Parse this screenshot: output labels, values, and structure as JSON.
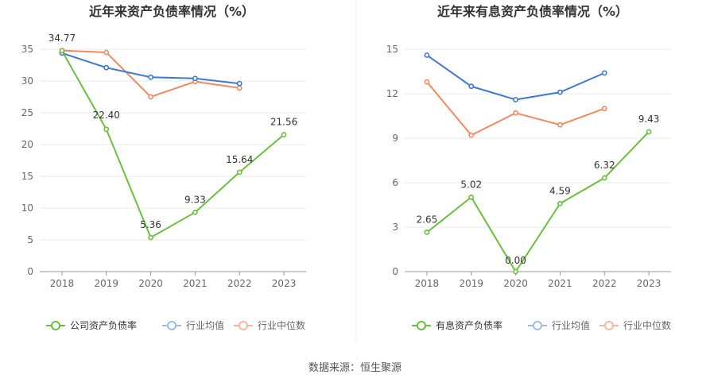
{
  "source": "数据来源：恒生聚源",
  "chart_data": [
    {
      "type": "line",
      "title": "近年来资产负债率情况（%）",
      "categories": [
        "2018",
        "2019",
        "2020",
        "2021",
        "2022",
        "2023"
      ],
      "ylim": [
        0,
        35
      ],
      "yticks": [
        0,
        5,
        10,
        15,
        20,
        25,
        30,
        35
      ],
      "grid": true,
      "legend": "bottom",
      "series": [
        {
          "name": "公司资产负债率",
          "color": "#67c23a",
          "values": [
            34.77,
            22.4,
            5.36,
            9.33,
            15.64,
            21.56
          ],
          "labels": [
            "34.77",
            "22.40",
            "5.36",
            "9.33",
            "15.64",
            "21.56"
          ]
        },
        {
          "name": "行业均值",
          "color": "#3b78d8",
          "values": [
            34.4,
            32.1,
            30.6,
            30.4,
            29.6,
            null
          ]
        },
        {
          "name": "行业中位数",
          "color": "#f4895f",
          "values": [
            34.8,
            34.5,
            27.5,
            29.9,
            28.9,
            null
          ]
        }
      ]
    },
    {
      "type": "line",
      "title": "近年来有息资产负债率情况（%）",
      "categories": [
        "2018",
        "2019",
        "2020",
        "2021",
        "2022",
        "2023"
      ],
      "ylim": [
        0,
        15
      ],
      "yticks": [
        0,
        3,
        6,
        9,
        12,
        15
      ],
      "grid": true,
      "legend": "bottom",
      "series": [
        {
          "name": "有息资产负债率",
          "color": "#67c23a",
          "values": [
            2.65,
            5.02,
            0.0,
            4.59,
            6.32,
            9.43
          ],
          "labels": [
            "2.65",
            "5.02",
            "0.00",
            "4.59",
            "6.32",
            "9.43"
          ]
        },
        {
          "name": "行业均值",
          "color": "#3b78d8",
          "values": [
            14.6,
            12.5,
            11.6,
            12.1,
            13.4,
            null
          ]
        },
        {
          "name": "行业中位数",
          "color": "#f4895f",
          "values": [
            12.8,
            9.2,
            10.7,
            9.9,
            11.0,
            null
          ]
        }
      ]
    }
  ]
}
